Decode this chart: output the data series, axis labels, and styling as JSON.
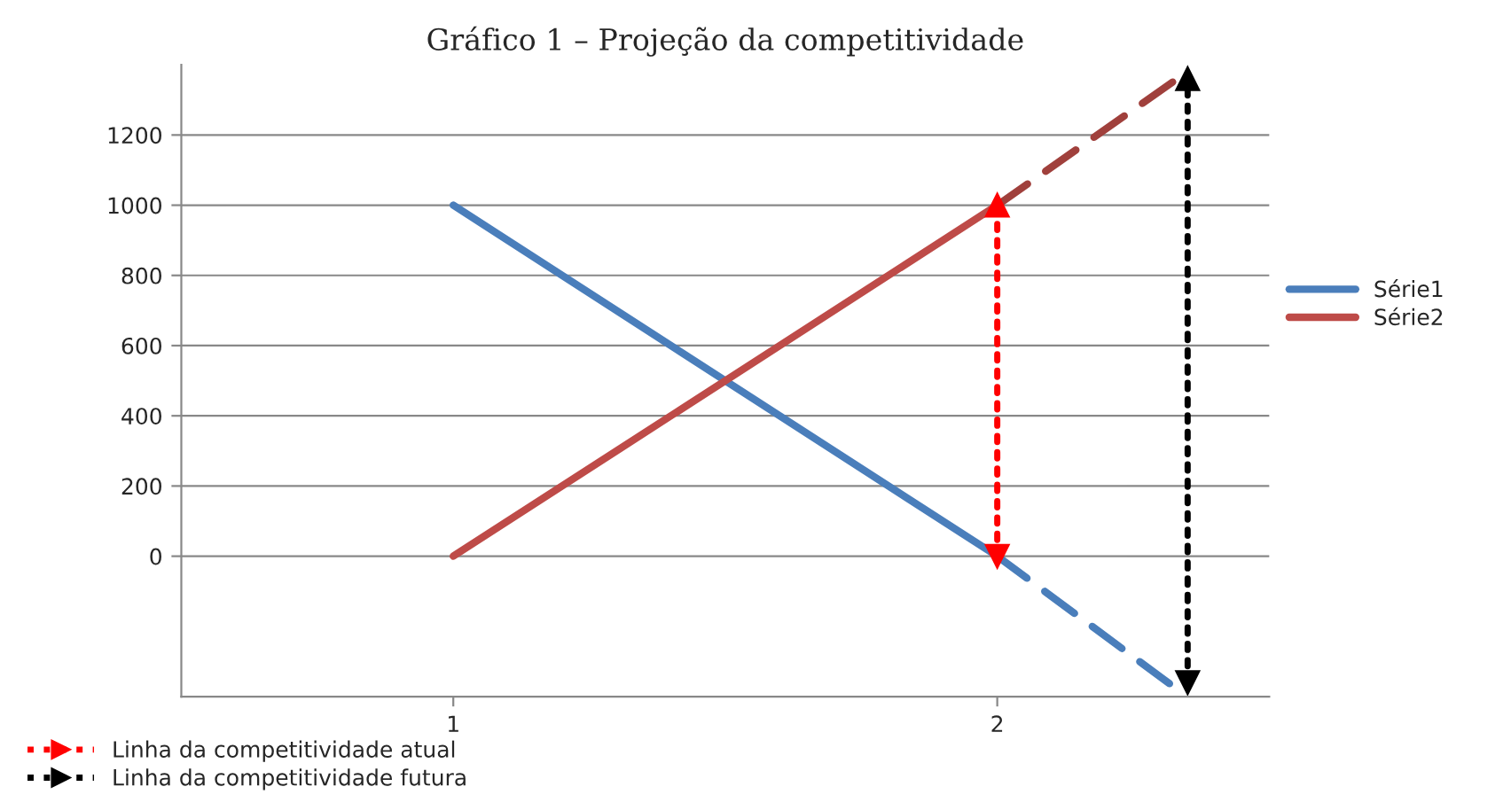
{
  "chart_data": {
    "type": "line",
    "title": "Gráfico 1 – Projeção da competitividade",
    "xlim": [
      0.5,
      2.5
    ],
    "xticks": [
      1,
      2
    ],
    "ylim": [
      -400,
      1400
    ],
    "yticks": [
      0,
      200,
      400,
      600,
      800,
      1000,
      1200
    ],
    "grid": "y",
    "legend": "right",
    "series": [
      {
        "name": "Série1",
        "color": "#4a7ebb",
        "x": [
          1,
          2
        ],
        "values": [
          1000,
          0
        ]
      },
      {
        "name": "Série2",
        "color": "#be4b48",
        "x": [
          1,
          2
        ],
        "values": [
          0,
          1000
        ]
      },
      {
        "color": "#4a7ebb",
        "x": [
          2,
          2.34
        ],
        "values": [
          0,
          -390
        ],
        "line_style": "dashed"
      },
      {
        "color": "#a0403c",
        "x": [
          2,
          2.34
        ],
        "values": [
          1000,
          1370
        ],
        "line_style": "dashed"
      },
      {
        "name": "Linha da competitividade atual",
        "color": "#ff0000",
        "x": [
          2,
          2
        ],
        "values": [
          0,
          1000
        ],
        "line_style": "dotted",
        "marker": "triangle"
      },
      {
        "name": "Linha da competitividade futura",
        "color": "#000000",
        "x": [
          2.35,
          2.35
        ],
        "values": [
          -360,
          1360
        ],
        "line_style": "dotted",
        "marker": "triangle"
      }
    ]
  }
}
